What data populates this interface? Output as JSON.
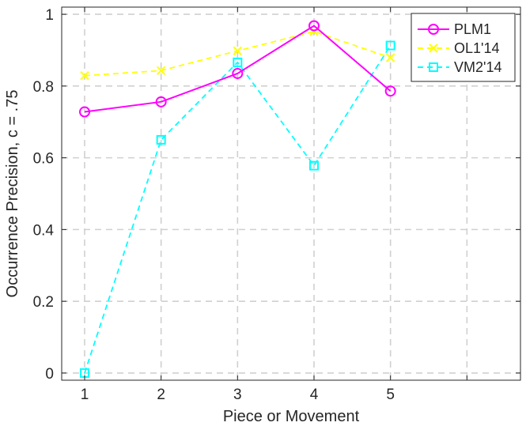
{
  "chart_data": {
    "type": "line",
    "xlabel": "Piece or Movement",
    "ylabel": "Occurrence Precision, c = .75",
    "x": [
      1,
      2,
      3,
      4,
      5
    ],
    "xlim": [
      0.7,
      6.7
    ],
    "ylim": [
      -0.02,
      1.02
    ],
    "xticks": [
      "1",
      "2",
      "3",
      "4",
      "5"
    ],
    "yticks": [
      "0",
      "0.2",
      "0.4",
      "0.6",
      "0.8",
      "1"
    ],
    "grid": true,
    "legend_position": "top-right",
    "series": [
      {
        "name": "PLM1",
        "values": [
          0.728,
          0.756,
          0.835,
          0.968,
          0.786
        ],
        "color": "#ff00ff",
        "marker": "circle",
        "line": "solid"
      },
      {
        "name": "OL1'14",
        "values": [
          0.829,
          0.843,
          0.898,
          0.952,
          0.879
        ],
        "color": "#ffff00",
        "marker": "x",
        "line": "dashed"
      },
      {
        "name": "VM2'14",
        "values": [
          0.0,
          0.65,
          0.866,
          0.578,
          0.913
        ],
        "color": "#00ffff",
        "marker": "square",
        "line": "dashed"
      }
    ]
  }
}
